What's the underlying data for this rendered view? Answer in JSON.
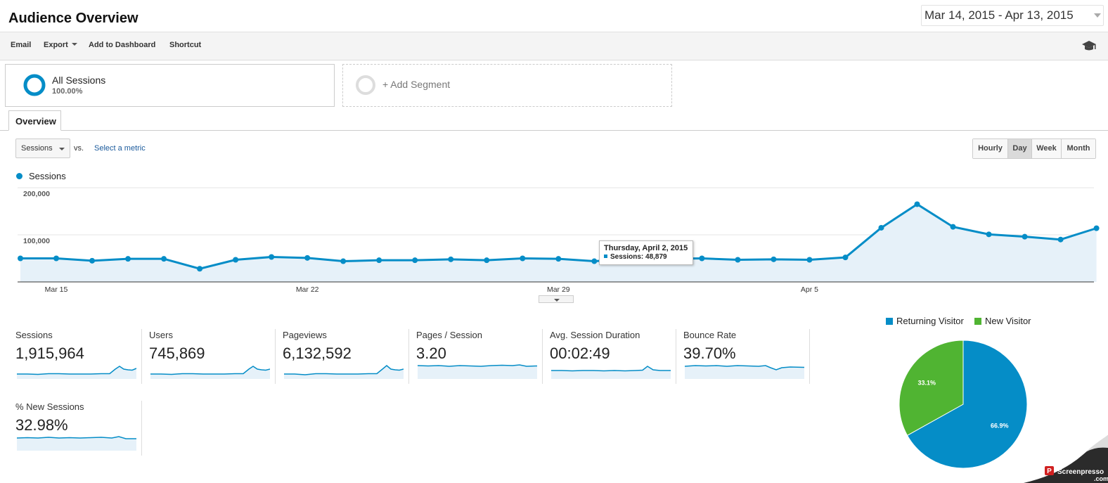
{
  "header": {
    "title": "Audience Overview",
    "date_range": "Mar 14, 2015 - Apr 13, 2015"
  },
  "toolbar": {
    "email": "Email",
    "export": "Export",
    "add_to_dashboard": "Add to Dashboard",
    "shortcut": "Shortcut",
    "icon": "graduation-cap-icon"
  },
  "segments": {
    "all_sessions": "All Sessions",
    "all_sessions_pct": "100.00%",
    "add_segment": "+ Add Segment"
  },
  "tabs": {
    "overview": "Overview"
  },
  "chart_controls": {
    "metric": "Sessions",
    "vs": "vs.",
    "select_metric": "Select a metric",
    "periods": [
      "Hourly",
      "Day",
      "Week",
      "Month"
    ],
    "active_period": "Day"
  },
  "colors": {
    "accent": "#058dc7",
    "new_visitor": "#50b432",
    "area_fill": "#e6f1f9"
  },
  "chart_data": [
    {
      "type": "line",
      "series": [
        {
          "name": "Sessions",
          "values": [
            50000,
            50000,
            45000,
            49000,
            49000,
            28000,
            47000,
            53000,
            51000,
            44000,
            46000,
            46000,
            48000,
            46000,
            50000,
            49000,
            44000,
            48879,
            49000,
            50000,
            47000,
            48000,
            47000,
            52000,
            115000,
            165000,
            117000,
            101000,
            96000,
            90000,
            114000
          ]
        }
      ],
      "x_tick_labels": [
        "Mar 15",
        "Mar 22",
        "Mar 29",
        "Apr 5"
      ],
      "y_tick_labels": [
        "200,000",
        "100,000"
      ],
      "ylim": [
        0,
        200000
      ],
      "grid": true,
      "legend": "top-left",
      "tooltip": {
        "title": "Thursday, April 2, 2015",
        "series_label": "Sessions:",
        "value": "48,879"
      }
    },
    {
      "type": "pie",
      "categories": [
        "Returning Visitor",
        "New Visitor"
      ],
      "values": [
        66.9,
        33.1
      ],
      "labels": [
        "66.9%",
        "33.1%"
      ],
      "legend": "top"
    }
  ],
  "metrics": [
    {
      "label": "Sessions",
      "value": "1,915,964"
    },
    {
      "label": "Users",
      "value": "745,869"
    },
    {
      "label": "Pageviews",
      "value": "6,132,592"
    },
    {
      "label": "Pages / Session",
      "value": "3.20"
    },
    {
      "label": "Avg. Session Duration",
      "value": "00:02:49"
    },
    {
      "label": "Bounce Rate",
      "value": "39.70%"
    },
    {
      "label": "% New Sessions",
      "value": "32.98%"
    }
  ],
  "watermark": {
    "line1": "Screenpresso",
    "line2": ".com"
  }
}
